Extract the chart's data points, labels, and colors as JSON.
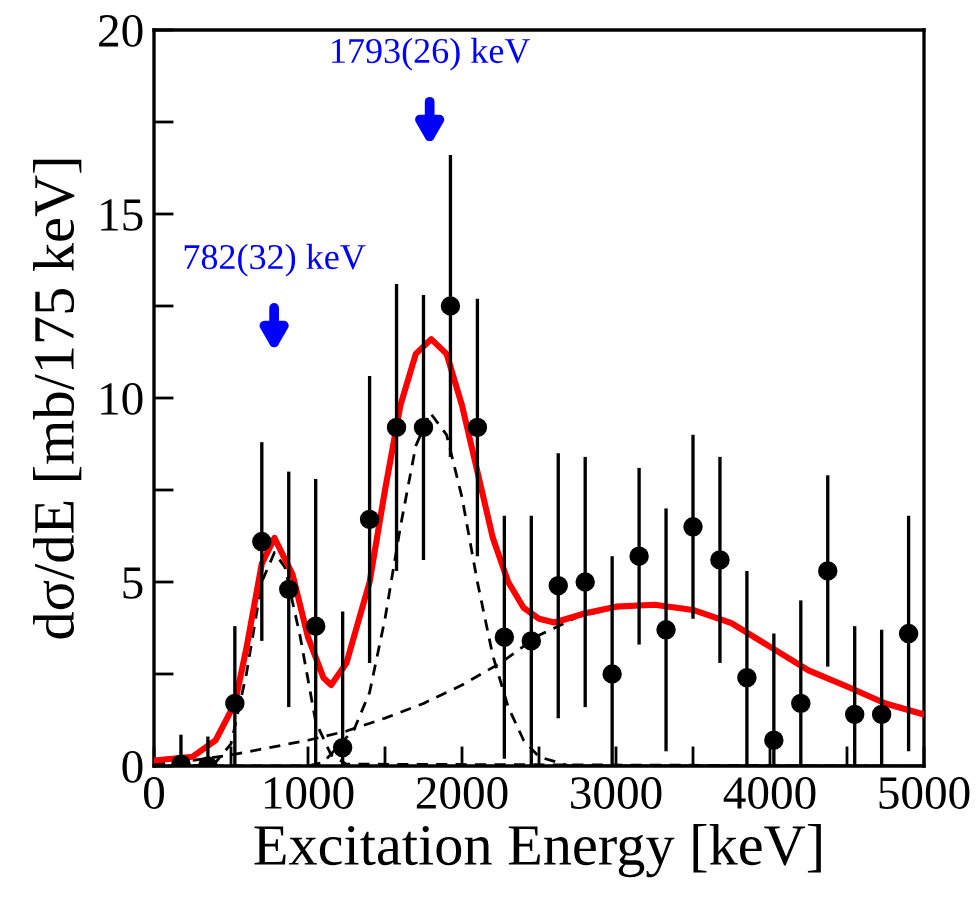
{
  "chart_data": {
    "type": "scatter",
    "xlabel": "Excitation Energy [keV]",
    "ylabel": "dσ/dE [mb/175 keV]",
    "xlim": [
      0,
      5000
    ],
    "ylim": [
      0,
      20
    ],
    "xticks": [
      0,
      {
        "value": 500,
        "label": null
      },
      1000,
      {
        "value": 1500,
        "label": null
      },
      2000,
      {
        "value": 2500,
        "label": null
      },
      3000,
      {
        "value": 3500,
        "label": null
      },
      4000,
      {
        "value": 4500,
        "label": null
      },
      5000
    ],
    "yticks": [
      0,
      {
        "value": 2.5,
        "label": null
      },
      5,
      {
        "value": 7.5,
        "label": null
      },
      10,
      {
        "value": 12.5,
        "label": null
      },
      15,
      {
        "value": 17.5,
        "label": null
      },
      20
    ],
    "grid": false,
    "legend": false,
    "annotations": [
      "782(32) keV",
      "1793(26) keV"
    ],
    "series": [
      {
        "color": "#000000",
        "marker": "circle",
        "x": [
          175,
          350,
          525,
          700,
          875,
          1050,
          1225,
          1400,
          1575,
          1750,
          1925,
          2100,
          2275,
          2450,
          2625,
          2800,
          2975,
          3150,
          3325,
          3500,
          3675,
          3850,
          4025,
          4200,
          4375,
          4550,
          4725,
          4900
        ],
        "values": [
          0.05,
          0,
          1.7,
          6.1,
          4.8,
          3.8,
          0.5,
          6.7,
          9.2,
          9.2,
          12.5,
          9.2,
          3.5,
          3.4,
          4.9,
          5.0,
          2.5,
          5.7,
          3.7,
          6.5,
          5.6,
          2.4,
          0.7,
          1.7,
          5.3,
          1.4,
          1.4,
          3.6
        ],
        "errors": [
          0.8,
          0.8,
          2.1,
          2.7,
          3.2,
          4.0,
          3.7,
          3.9,
          3.9,
          3.6,
          4.1,
          3.5,
          3.3,
          3.4,
          3.6,
          3.4,
          3.2,
          2.4,
          3.3,
          2.5,
          2.8,
          2.9,
          2.9,
          2.8,
          2.6,
          2.4,
          2.3,
          3.2
        ]
      },
      {
        "type": "line",
        "color": "#ff0000",
        "line_style": "solid",
        "x": [
          0,
          250,
          400,
          525,
          600,
          700,
          782,
          900,
          1000,
          1100,
          1150,
          1250,
          1400,
          1500,
          1600,
          1700,
          1800,
          1900,
          2000,
          2100,
          2200,
          2300,
          2400,
          2500,
          2600,
          2800,
          3000,
          3250,
          3500,
          3750,
          4000,
          4250,
          4500,
          4750,
          5000
        ],
        "values": [
          0.15,
          0.25,
          0.7,
          1.7,
          3.2,
          5.5,
          6.2,
          5.2,
          3.5,
          2.4,
          2.2,
          2.8,
          5.0,
          7.5,
          9.8,
          11.2,
          11.6,
          11.2,
          9.8,
          8.0,
          6.2,
          5.0,
          4.3,
          4.0,
          3.9,
          4.15,
          4.33,
          4.38,
          4.24,
          3.88,
          3.24,
          2.6,
          2.16,
          1.7,
          1.4
        ]
      },
      {
        "type": "line",
        "color": "#000000",
        "line_style": "dashed",
        "x": [
          0,
          300,
          400,
          500,
          600,
          700,
          782,
          850,
          950,
          1050,
          1150,
          1250,
          5000
        ],
        "values": [
          0,
          0,
          0.1,
          0.6,
          2.5,
          5.0,
          5.8,
          5.4,
          3.5,
          1.2,
          0.3,
          0.05,
          0
        ]
      },
      {
        "type": "line",
        "color": "#000000",
        "line_style": "dashed",
        "x": [
          0,
          1000,
          1100,
          1300,
          1400,
          1500,
          1600,
          1700,
          1793,
          1900,
          2000,
          2100,
          2200,
          2300,
          2400,
          2500,
          2700,
          5000
        ],
        "values": [
          0,
          0,
          0.1,
          1.0,
          2.0,
          4.0,
          6.5,
          8.7,
          9.6,
          9.0,
          7.3,
          5.0,
          3.0,
          1.6,
          0.7,
          0.25,
          0,
          0
        ]
      },
      {
        "type": "line",
        "color": "#000000",
        "line_style": "dashed",
        "x": [
          0,
          250,
          500,
          750,
          1000,
          1250,
          1500,
          1750,
          2000,
          2250,
          2500,
          2750,
          3000,
          3250,
          3500,
          3750,
          4000,
          4250,
          4500,
          4750,
          5000
        ],
        "values": [
          0.05,
          0.15,
          0.3,
          0.5,
          0.7,
          0.95,
          1.3,
          1.7,
          2.2,
          2.8,
          3.55,
          4.05,
          4.3,
          4.38,
          4.24,
          3.88,
          3.24,
          2.6,
          2.16,
          1.7,
          1.4
        ]
      }
    ]
  }
}
